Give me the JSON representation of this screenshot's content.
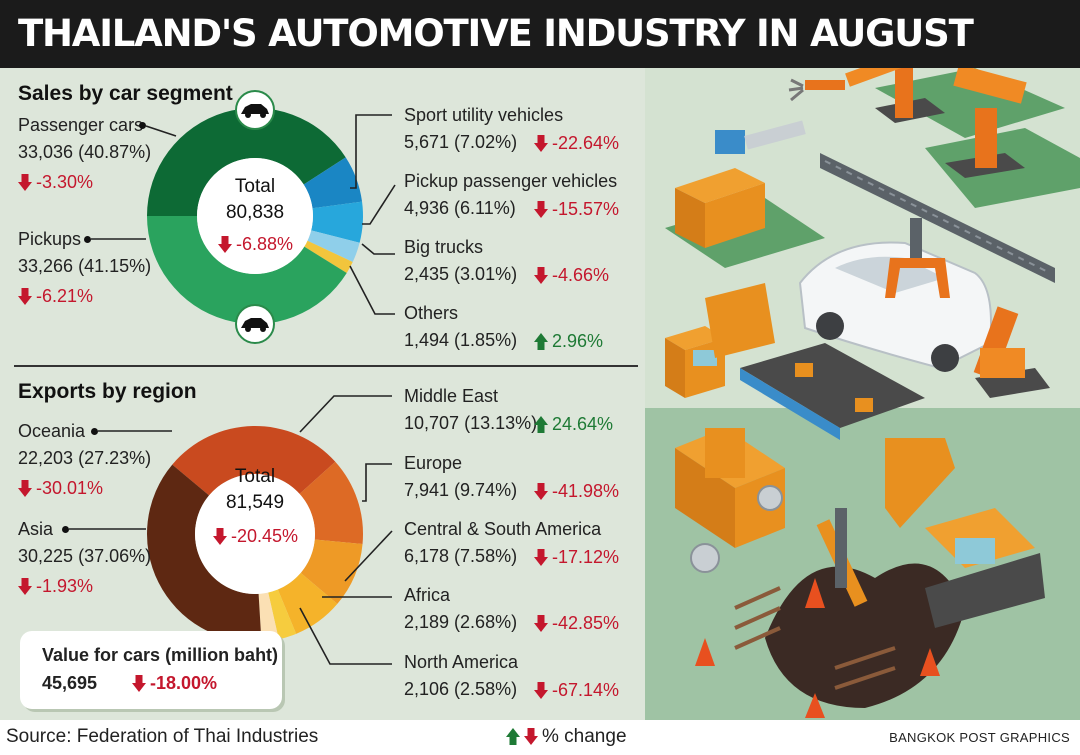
{
  "title": "THAILAND'S AUTOMOTIVE INDUSTRY IN AUGUST",
  "colors": {
    "down": "#c4172d",
    "up": "#1e7a35"
  },
  "chart_data": [
    {
      "type": "pie",
      "title": "Sales by car segment",
      "center_label": "Total",
      "center_total": "80,838",
      "center_change": "-6.88%",
      "center_direction": "down",
      "series": [
        {
          "name": "Passenger cars",
          "value": 33036,
          "value_label": "33,036",
          "percent": "40.87%",
          "change": "-3.30%",
          "direction": "down",
          "color": "#0d6a35"
        },
        {
          "name": "Sport utility vehicles",
          "value": 5671,
          "value_label": "5,671",
          "percent": "7.02%",
          "change": "-22.64%",
          "direction": "down",
          "color": "#1a86c4"
        },
        {
          "name": "Pickup passenger vehicles",
          "value": 4936,
          "value_label": "4,936",
          "percent": "6.11%",
          "change": "-15.57%",
          "direction": "down",
          "color": "#27a7dc"
        },
        {
          "name": "Big trucks",
          "value": 2435,
          "value_label": "2,435",
          "percent": "3.01%",
          "change": "-4.66%",
          "direction": "down",
          "color": "#8fcfea"
        },
        {
          "name": "Others",
          "value": 1494,
          "value_label": "1,494",
          "percent": "1.85%",
          "change": "2.96%",
          "direction": "up",
          "color": "#f2c53c"
        },
        {
          "name": "Pickups",
          "value": 33266,
          "value_label": "33,266",
          "percent": "41.15%",
          "change": "-6.21%",
          "direction": "down",
          "color": "#2aa35e"
        }
      ]
    },
    {
      "type": "pie",
      "title": "Exports by region",
      "center_label": "Total",
      "center_total": "81,549",
      "center_change": "-20.45%",
      "center_direction": "down",
      "series": [
        {
          "name": "Oceania",
          "value": 22203,
          "value_label": "22,203",
          "percent": "27.23%",
          "change": "-30.01%",
          "direction": "down",
          "color": "#c94a1f"
        },
        {
          "name": "Middle East",
          "value": 10707,
          "value_label": "10,707",
          "percent": "13.13%",
          "change": "24.64%",
          "direction": "up",
          "color": "#dd6a25"
        },
        {
          "name": "Europe",
          "value": 7941,
          "value_label": "7,941",
          "percent": "9.74%",
          "change": "-41.98%",
          "direction": "down",
          "color": "#ee9a26"
        },
        {
          "name": "Central & South America",
          "value": 6178,
          "value_label": "6,178",
          "percent": "7.58%",
          "change": "-17.12%",
          "direction": "down",
          "color": "#f5b32a"
        },
        {
          "name": "Africa",
          "value": 2189,
          "value_label": "2,189",
          "percent": "2.68%",
          "change": "-42.85%",
          "direction": "down",
          "color": "#f6cc3e"
        },
        {
          "name": "North America",
          "value": 2106,
          "value_label": "2,106",
          "percent": "2.58%",
          "change": "-67.14%",
          "direction": "down",
          "color": "#fbe0b4"
        },
        {
          "name": "Asia",
          "value": 30225,
          "value_label": "30,225",
          "percent": "37.06%",
          "change": "-1.93%",
          "direction": "down",
          "color": "#5e2812"
        }
      ]
    }
  ],
  "value_box": {
    "title": "Value for cars (million baht)",
    "value": "45,695",
    "change": "-18.00%",
    "direction": "down"
  },
  "footer": {
    "source": "Source: Federation of Thai Industries",
    "legend": "% change",
    "credit": "BANGKOK POST GRAPHICS"
  }
}
